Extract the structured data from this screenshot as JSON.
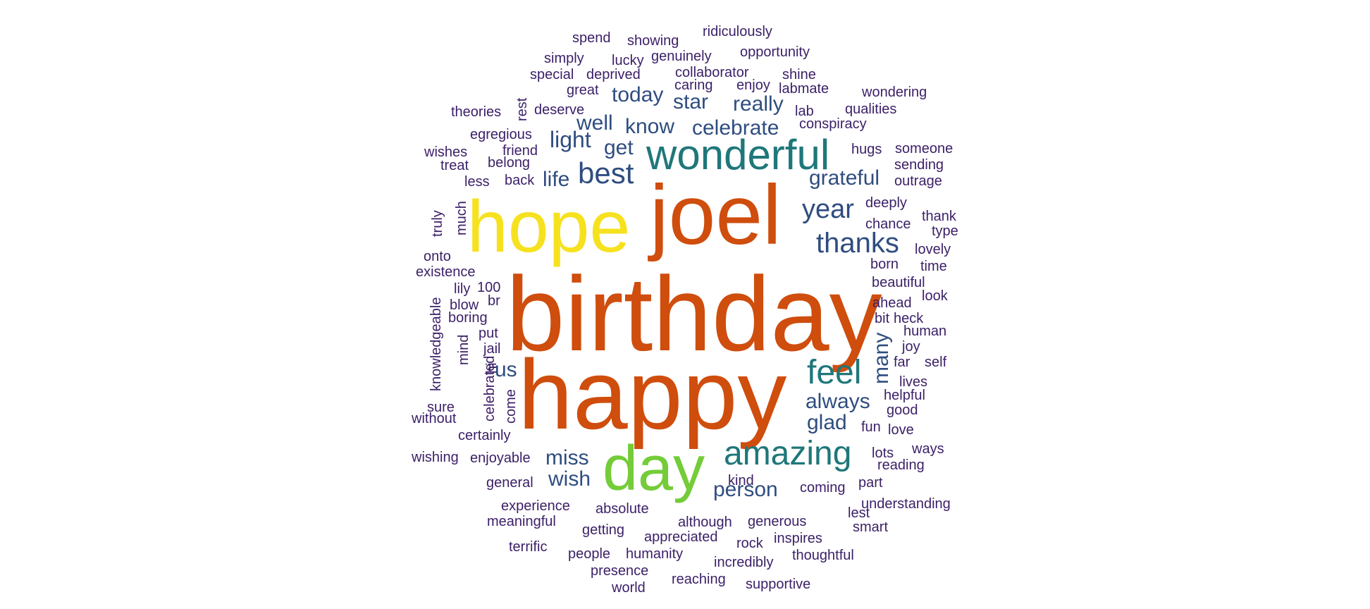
{
  "palette": {
    "s1": "#3b1f67",
    "s2": "#2f4d80",
    "s3": "#1f777a",
    "s4": "#74cc39",
    "s5": "#f6e11f",
    "s6": "#cf4d0d"
  },
  "words": [
    {
      "text": "birthday",
      "weight": "s6"
    },
    {
      "text": "happy",
      "weight": "s6"
    },
    {
      "text": "joel",
      "weight": "s6"
    },
    {
      "text": "hope",
      "weight": "s5"
    },
    {
      "text": "day",
      "weight": "s4"
    },
    {
      "text": "wonderful",
      "weight": "s3"
    },
    {
      "text": "amazing",
      "weight": "s3"
    },
    {
      "text": "feel",
      "weight": "s3"
    },
    {
      "text": "thanks",
      "weight": "s2"
    },
    {
      "text": "year",
      "weight": "s2"
    },
    {
      "text": "best",
      "weight": "s2"
    },
    {
      "text": "grateful",
      "weight": "s2"
    },
    {
      "text": "always",
      "weight": "s2"
    },
    {
      "text": "glad",
      "weight": "s2"
    },
    {
      "text": "person",
      "weight": "s2"
    },
    {
      "text": "miss",
      "weight": "s2"
    },
    {
      "text": "wish",
      "weight": "s2"
    },
    {
      "text": "us",
      "weight": "s2"
    },
    {
      "text": "many",
      "weight": "s2"
    },
    {
      "text": "light",
      "weight": "s2"
    },
    {
      "text": "life",
      "weight": "s2"
    },
    {
      "text": "get",
      "weight": "s2"
    },
    {
      "text": "well",
      "weight": "s2"
    },
    {
      "text": "know",
      "weight": "s2"
    },
    {
      "text": "celebrate",
      "weight": "s2"
    },
    {
      "text": "really",
      "weight": "s2"
    },
    {
      "text": "star",
      "weight": "s2"
    },
    {
      "text": "today",
      "weight": "s2"
    },
    {
      "text": "spend",
      "weight": "s1"
    },
    {
      "text": "showing",
      "weight": "s1"
    },
    {
      "text": "ridiculously",
      "weight": "s1"
    },
    {
      "text": "simply",
      "weight": "s1"
    },
    {
      "text": "lucky",
      "weight": "s1"
    },
    {
      "text": "genuinely",
      "weight": "s1"
    },
    {
      "text": "opportunity",
      "weight": "s1"
    },
    {
      "text": "special",
      "weight": "s1"
    },
    {
      "text": "deprived",
      "weight": "s1"
    },
    {
      "text": "collaborator",
      "weight": "s1"
    },
    {
      "text": "shine",
      "weight": "s1"
    },
    {
      "text": "great",
      "weight": "s1"
    },
    {
      "text": "caring",
      "weight": "s1"
    },
    {
      "text": "enjoy",
      "weight": "s1"
    },
    {
      "text": "labmate",
      "weight": "s1"
    },
    {
      "text": "wondering",
      "weight": "s1"
    },
    {
      "text": "theories",
      "weight": "s1"
    },
    {
      "text": "rest",
      "weight": "s1"
    },
    {
      "text": "deserve",
      "weight": "s1"
    },
    {
      "text": "lab",
      "weight": "s1"
    },
    {
      "text": "qualities",
      "weight": "s1"
    },
    {
      "text": "conspiracy",
      "weight": "s1"
    },
    {
      "text": "egregious",
      "weight": "s1"
    },
    {
      "text": "wishes",
      "weight": "s1"
    },
    {
      "text": "friend",
      "weight": "s1"
    },
    {
      "text": "hugs",
      "weight": "s1"
    },
    {
      "text": "someone",
      "weight": "s1"
    },
    {
      "text": "treat",
      "weight": "s1"
    },
    {
      "text": "belong",
      "weight": "s1"
    },
    {
      "text": "sending",
      "weight": "s1"
    },
    {
      "text": "less",
      "weight": "s1"
    },
    {
      "text": "back",
      "weight": "s1"
    },
    {
      "text": "outrage",
      "weight": "s1"
    },
    {
      "text": "truly",
      "weight": "s1"
    },
    {
      "text": "much",
      "weight": "s1"
    },
    {
      "text": "deeply",
      "weight": "s1"
    },
    {
      "text": "thank",
      "weight": "s1"
    },
    {
      "text": "chance",
      "weight": "s1"
    },
    {
      "text": "type",
      "weight": "s1"
    },
    {
      "text": "onto",
      "weight": "s1"
    },
    {
      "text": "lovely",
      "weight": "s1"
    },
    {
      "text": "existence",
      "weight": "s1"
    },
    {
      "text": "born",
      "weight": "s1"
    },
    {
      "text": "time",
      "weight": "s1"
    },
    {
      "text": "lily",
      "weight": "s1"
    },
    {
      "text": "100",
      "weight": "s1"
    },
    {
      "text": "beautiful",
      "weight": "s1"
    },
    {
      "text": "knowledgeable",
      "weight": "s1"
    },
    {
      "text": "br",
      "weight": "s1"
    },
    {
      "text": "look",
      "weight": "s1"
    },
    {
      "text": "blow",
      "weight": "s1"
    },
    {
      "text": "ahead",
      "weight": "s1"
    },
    {
      "text": "boring",
      "weight": "s1"
    },
    {
      "text": "bit",
      "weight": "s1"
    },
    {
      "text": "heck",
      "weight": "s1"
    },
    {
      "text": "put",
      "weight": "s1"
    },
    {
      "text": "human",
      "weight": "s1"
    },
    {
      "text": "mind",
      "weight": "s1"
    },
    {
      "text": "jail",
      "weight": "s1"
    },
    {
      "text": "joy",
      "weight": "s1"
    },
    {
      "text": "celebrated",
      "weight": "s1"
    },
    {
      "text": "hi",
      "weight": "s1"
    },
    {
      "text": "far",
      "weight": "s1"
    },
    {
      "text": "self",
      "weight": "s1"
    },
    {
      "text": "lives",
      "weight": "s1"
    },
    {
      "text": "sure",
      "weight": "s1"
    },
    {
      "text": "come",
      "weight": "s1"
    },
    {
      "text": "helpful",
      "weight": "s1"
    },
    {
      "text": "without",
      "weight": "s1"
    },
    {
      "text": "good",
      "weight": "s1"
    },
    {
      "text": "fun",
      "weight": "s1"
    },
    {
      "text": "love",
      "weight": "s1"
    },
    {
      "text": "certainly",
      "weight": "s1"
    },
    {
      "text": "lots",
      "weight": "s1"
    },
    {
      "text": "ways",
      "weight": "s1"
    },
    {
      "text": "wishing",
      "weight": "s1"
    },
    {
      "text": "enjoyable",
      "weight": "s1"
    },
    {
      "text": "reading",
      "weight": "s1"
    },
    {
      "text": "kind",
      "weight": "s1"
    },
    {
      "text": "general",
      "weight": "s1"
    },
    {
      "text": "part",
      "weight": "s1"
    },
    {
      "text": "coming",
      "weight": "s1"
    },
    {
      "text": "experience",
      "weight": "s1"
    },
    {
      "text": "absolute",
      "weight": "s1"
    },
    {
      "text": "lest",
      "weight": "s1"
    },
    {
      "text": "understanding",
      "weight": "s1"
    },
    {
      "text": "although",
      "weight": "s1"
    },
    {
      "text": "generous",
      "weight": "s1"
    },
    {
      "text": "meaningful",
      "weight": "s1"
    },
    {
      "text": "smart",
      "weight": "s1"
    },
    {
      "text": "getting",
      "weight": "s1"
    },
    {
      "text": "appreciated",
      "weight": "s1"
    },
    {
      "text": "inspires",
      "weight": "s1"
    },
    {
      "text": "terrific",
      "weight": "s1"
    },
    {
      "text": "rock",
      "weight": "s1"
    },
    {
      "text": "people",
      "weight": "s1"
    },
    {
      "text": "humanity",
      "weight": "s1"
    },
    {
      "text": "thoughtful",
      "weight": "s1"
    },
    {
      "text": "incredibly",
      "weight": "s1"
    },
    {
      "text": "presence",
      "weight": "s1"
    },
    {
      "text": "reaching",
      "weight": "s1"
    },
    {
      "text": "supportive",
      "weight": "s1"
    },
    {
      "text": "world",
      "weight": "s1"
    }
  ]
}
